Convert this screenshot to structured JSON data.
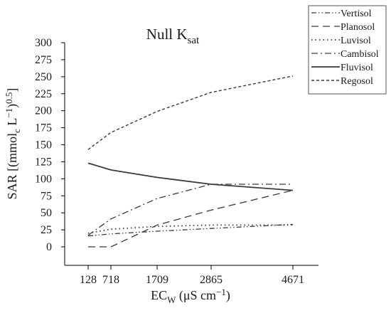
{
  "chart_data": {
    "type": "line",
    "title": "Null K",
    "title_sub": "sat",
    "xlabel": "EC",
    "xlabel_sub": "W",
    "xlabel_units": " (μS cm",
    "xlabel_sup": "−1",
    "xlabel_close": ")",
    "ylabel_main": "SAR [(mmol",
    "ylabel_sub": "c",
    "ylabel_mid": " L",
    "ylabel_sup1": "−1",
    "ylabel_mid2": ")",
    "ylabel_sup2": "0.5",
    "ylabel_close": "]",
    "x": [
      128,
      718,
      1709,
      2865,
      4671
    ],
    "x_tick_labels": [
      "128",
      "718",
      "1709",
      "2865",
      "4671"
    ],
    "ylim": [
      0,
      300
    ],
    "y_ticks": [
      0,
      25,
      50,
      75,
      100,
      125,
      150,
      175,
      200,
      225,
      250,
      275,
      300
    ],
    "grid": false,
    "legend_position": "top-right",
    "series": [
      {
        "name": "Vertisol",
        "dash": "dash-dot-dot",
        "values": [
          16,
          19,
          23,
          27,
          33
        ]
      },
      {
        "name": "Planosol",
        "dash": "long-dash",
        "values": [
          0,
          0,
          32,
          54,
          83
        ]
      },
      {
        "name": "Luvisol",
        "dash": "dotted",
        "values": [
          20,
          26,
          30,
          32,
          32
        ]
      },
      {
        "name": "Cambisol",
        "dash": "dash-dot",
        "values": [
          17,
          41,
          71,
          92,
          92
        ]
      },
      {
        "name": "Fluvisol",
        "dash": "solid",
        "values": [
          123,
          113,
          102,
          92,
          83
        ]
      },
      {
        "name": "Regosol",
        "dash": "short-dash",
        "values": [
          143,
          168,
          199,
          227,
          251
        ]
      }
    ]
  }
}
